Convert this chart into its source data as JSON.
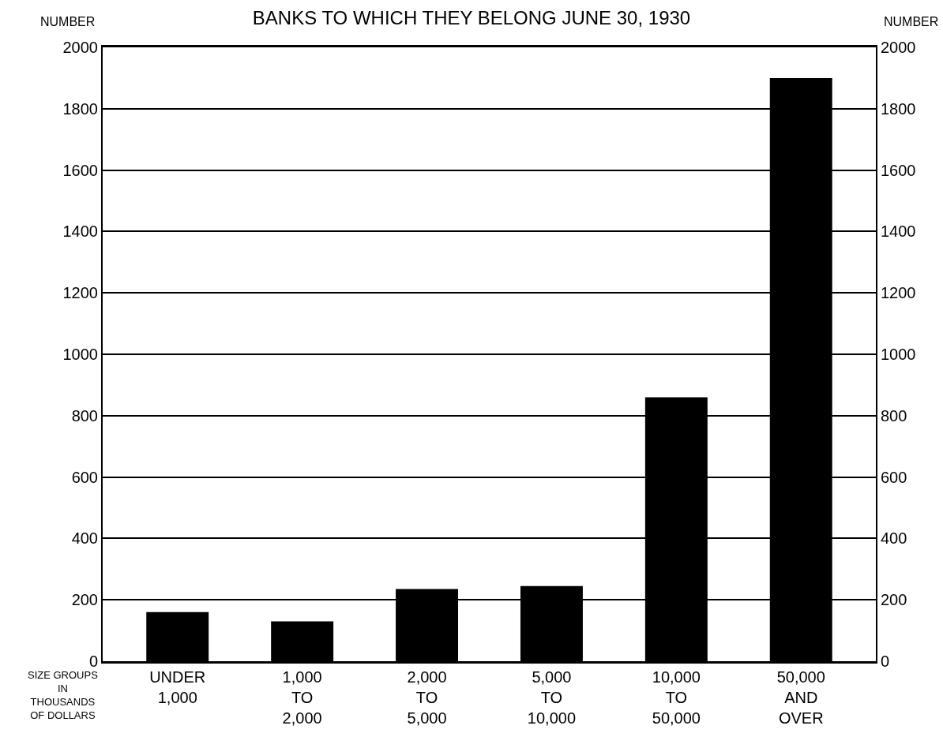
{
  "chart_data": {
    "type": "bar",
    "title": "BANKS TO WHICH THEY BELONG JUNE 30, 1930",
    "xlabel": "SIZE GROUPS\nIN\nTHOUSANDS\nOF DOLLARS",
    "ylabel": "NUMBER",
    "y2label": "NUMBER",
    "categories": [
      "UNDER\n1,000",
      "1,000\nTO\n2,000",
      "2,000\nTO\n5,000",
      "5,000\nTO\n10,000",
      "10,000\nTO\n50,000",
      "50,000\nAND\nOVER"
    ],
    "values": [
      160,
      130,
      235,
      245,
      860,
      1900
    ],
    "color": "#000000",
    "ylim": [
      0,
      2000
    ],
    "yticks": [
      0,
      200,
      400,
      600,
      800,
      1000,
      1200,
      1400,
      1600,
      1800,
      2000
    ],
    "y2lim": [
      0,
      2000
    ],
    "y2ticks": [
      0,
      200,
      400,
      600,
      800,
      1000,
      1200,
      1400,
      1600,
      1800,
      2000
    ],
    "grid": "y"
  }
}
